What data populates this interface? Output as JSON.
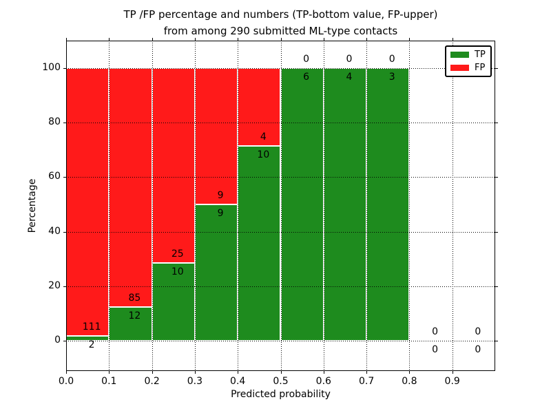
{
  "figure": {
    "title_line1": "TP /FP percentage and numbers (TP-bottom value, FP-upper)",
    "title_line2": "from among 290 submitted ML-type contacts"
  },
  "chart_data": {
    "type": "bar",
    "stacked": true,
    "title": "TP /FP percentage and numbers (TP-bottom value, FP-upper)\nfrom among 290 submitted ML-type contacts",
    "xlabel": "Predicted probability",
    "ylabel": "Percentage",
    "total_contacts": 290,
    "xlim": [
      0.0,
      1.0
    ],
    "ylim": [
      -11,
      110
    ],
    "x_tick_labels": [
      "0.0",
      "0.1",
      "0.2",
      "0.3",
      "0.4",
      "0.5",
      "0.6",
      "0.7",
      "0.8",
      "0.9"
    ],
    "y_tick_values": [
      0,
      20,
      40,
      60,
      80,
      100
    ],
    "grid": "dotted",
    "bin_width": 0.1,
    "categories": [
      "0.0-0.1",
      "0.1-0.2",
      "0.2-0.3",
      "0.3-0.4",
      "0.4-0.5",
      "0.5-0.6",
      "0.6-0.7",
      "0.7-0.8",
      "0.8-0.9",
      "0.9-1.0"
    ],
    "series": [
      {
        "name": "TP",
        "color": "#1e8b1e",
        "counts": [
          2,
          12,
          10,
          9,
          10,
          6,
          4,
          3,
          0,
          0
        ]
      },
      {
        "name": "FP",
        "color": "#ff1a1a",
        "counts": [
          111,
          85,
          25,
          9,
          4,
          0,
          0,
          0,
          0,
          0
        ]
      }
    ],
    "tp_percent_per_bin": [
      1.77,
      12.37,
      28.57,
      50.0,
      71.43,
      100.0,
      100.0,
      100.0,
      null,
      null
    ],
    "legend": {
      "position": "upper right",
      "entries": [
        {
          "label": "TP",
          "color": "#1e8b1e"
        },
        {
          "label": "FP",
          "color": "#ff1a1a"
        }
      ]
    }
  }
}
